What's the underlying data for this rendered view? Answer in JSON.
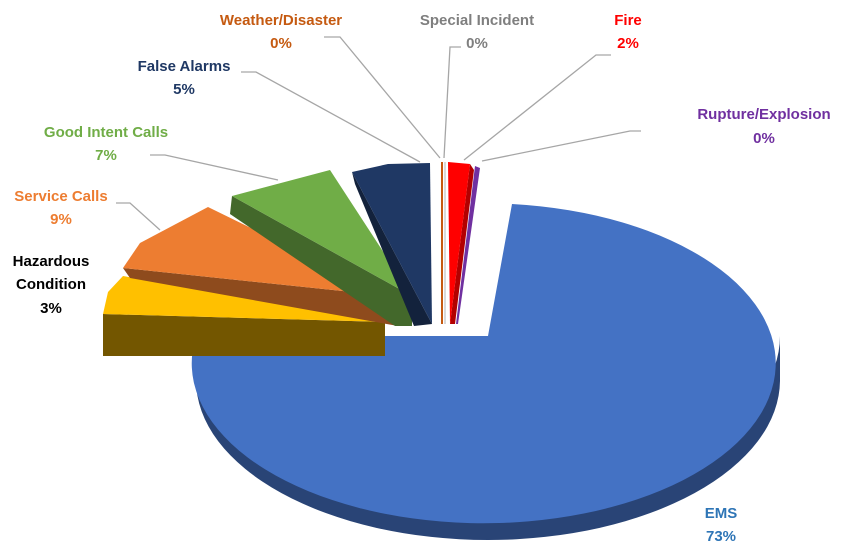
{
  "chart_data": {
    "type": "pie",
    "style": "3d-exploded",
    "title": "",
    "slices": [
      {
        "name": "EMS",
        "value": 73,
        "label": "73%",
        "color": "#4472C4",
        "label_color": "#2E75B6"
      },
      {
        "name": "Hazardous Condition",
        "value": 3,
        "label": "3%",
        "color": "#FFC000",
        "label_color": "#000000"
      },
      {
        "name": "Service Calls",
        "value": 9,
        "label": "9%",
        "color": "#ED7D31",
        "label_color": "#ED7D31"
      },
      {
        "name": "Good Intent Calls",
        "value": 7,
        "label": "7%",
        "color": "#70AD47",
        "label_color": "#70AD47"
      },
      {
        "name": "False Alarms",
        "value": 5,
        "label": "5%",
        "color": "#1F3864",
        "label_color": "#1F3864"
      },
      {
        "name": "Weather/Disaster",
        "value": 0,
        "label": "0%",
        "color": "#C55A11",
        "label_color": "#C55A11"
      },
      {
        "name": "Special Incident",
        "value": 0,
        "label": "0%",
        "color": "#7F7F7F",
        "label_color": "#7F7F7F"
      },
      {
        "name": "Fire",
        "value": 2,
        "label": "2%",
        "color": "#FF0000",
        "label_color": "#FF0000"
      },
      {
        "name": "Rupture/Explosion",
        "value": 0,
        "label": "0%",
        "color": "#7030A0",
        "label_color": "#7030A0"
      }
    ]
  }
}
